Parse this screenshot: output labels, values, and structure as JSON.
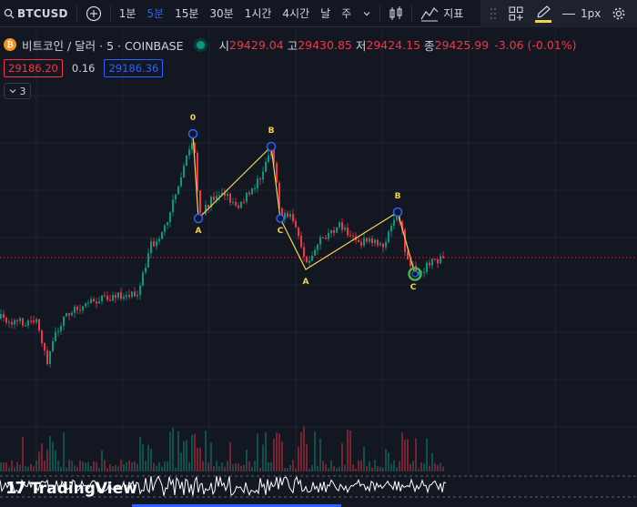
{
  "toolbar": {
    "symbol": "BTCUSD",
    "intervals": [
      "1분",
      "5분",
      "15분",
      "30분",
      "1시간",
      "4시간",
      "날",
      "주"
    ],
    "active_interval_index": 1,
    "indicators_label": "지표",
    "line_width_label": "1px"
  },
  "legend": {
    "coin_glyph": "₿",
    "title": "비트코인 / 달러 · 5 · COINBASE",
    "open_label": "시",
    "open": "29429.04",
    "high_label": "고",
    "high": "29430.85",
    "low_label": "저",
    "low": "29424.15",
    "close_label": "종",
    "close": "29425.99",
    "change": "-3.06 (-0.01%)"
  },
  "prices": {
    "sell": "29186.20",
    "spread": "0.16",
    "buy": "29186.36"
  },
  "indicators_collapsed": {
    "count": "3"
  },
  "elliott_wave": {
    "labels": [
      "0",
      "A",
      "B",
      "C",
      "A",
      "B",
      "C"
    ]
  },
  "brand": {
    "logo": "17",
    "name": "TradingView"
  },
  "colors": {
    "background": "#131722",
    "up": "#089981",
    "down": "#f23645",
    "wave_line": "#f5d547",
    "wave_point": "#2962ff",
    "wave_last_point": "#4caf50",
    "accent": "#2962ff"
  }
}
